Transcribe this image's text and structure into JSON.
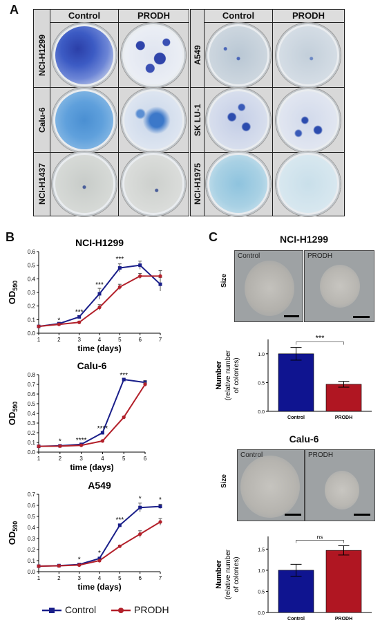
{
  "panel_a": {
    "letter": "A",
    "left_block": {
      "columns": [
        "Control",
        "PRODH"
      ],
      "rows": [
        "NCI-H1299",
        "Calu-6",
        "NCI-H1437"
      ]
    },
    "right_block": {
      "columns": [
        "Control",
        "PRODH"
      ],
      "rows": [
        "A549",
        "SK LU-1",
        "NCI-H1975"
      ]
    }
  },
  "panel_b": {
    "letter": "B",
    "legend": {
      "control": "Control",
      "prodh": "PRODH"
    },
    "colors": {
      "control": "#1a1f8a",
      "prodh": "#b3202a"
    }
  },
  "panel_c": {
    "letter": "C",
    "blocks": [
      {
        "title": "NCI-H1299",
        "size_label": "Size",
        "image_labels": [
          "Control",
          "PRODH"
        ],
        "y_label_1": "Number",
        "y_label_2": "(relative number",
        "y_label_3": "of colonies)"
      },
      {
        "title": "Calu-6",
        "size_label": "Size",
        "image_labels": [
          "Control",
          "PRODH"
        ],
        "y_label_1": "Number",
        "y_label_2": "(relative number",
        "y_label_3": "of colonies)"
      }
    ]
  },
  "chart_data": [
    {
      "type": "line",
      "title": "NCI-H1299",
      "xlabel": "time (days)",
      "ylabel": "OD590",
      "xlim": [
        1,
        7
      ],
      "ylim": [
        0,
        0.6
      ],
      "yticks": [
        "0.0",
        "0.1",
        "0.2",
        "0.3",
        "0.4",
        "0.5",
        "0.6"
      ],
      "x": [
        1,
        2,
        3,
        4,
        5,
        6,
        7
      ],
      "series": [
        {
          "name": "Control",
          "values": [
            0.05,
            0.07,
            0.12,
            0.29,
            0.48,
            0.5,
            0.36
          ],
          "err": [
            0.005,
            0.01,
            0.01,
            0.04,
            0.03,
            0.03,
            0.05
          ]
        },
        {
          "name": "PRODH",
          "values": [
            0.05,
            0.065,
            0.08,
            0.19,
            0.34,
            0.42,
            0.42
          ],
          "err": [
            0.005,
            0.005,
            0.008,
            0.02,
            0.02,
            0.02,
            0.04
          ]
        }
      ],
      "annotations": [
        {
          "x": 2,
          "y": 0.08,
          "text": "*"
        },
        {
          "x": 3,
          "y": 0.14,
          "text": "***"
        },
        {
          "x": 4,
          "y": 0.34,
          "text": "***"
        },
        {
          "x": 5,
          "y": 0.53,
          "text": "***"
        }
      ]
    },
    {
      "type": "line",
      "title": "Calu-6",
      "xlabel": "time (days)",
      "ylabel": "OD590",
      "xlim": [
        1,
        6
      ],
      "ylim": [
        0,
        0.8
      ],
      "yticks": [
        "0.0",
        "0.1",
        "0.2",
        "0.3",
        "0.4",
        "0.5",
        "0.6",
        "0.7",
        "0.8"
      ],
      "x": [
        1,
        2,
        3,
        4,
        5,
        6
      ],
      "series": [
        {
          "name": "Control",
          "values": [
            0.06,
            0.065,
            0.08,
            0.2,
            0.75,
            0.72
          ],
          "err": [
            0.005,
            0.005,
            0.01,
            0.01,
            0.01,
            0.02
          ]
        },
        {
          "name": "PRODH",
          "values": [
            0.06,
            0.062,
            0.07,
            0.115,
            0.36,
            0.7
          ],
          "err": [
            0.005,
            0.005,
            0.005,
            0.008,
            0.01,
            0.02
          ]
        }
      ],
      "annotations": [
        {
          "x": 2,
          "y": 0.09,
          "text": "*"
        },
        {
          "x": 3,
          "y": 0.1,
          "text": "****"
        },
        {
          "x": 4,
          "y": 0.22,
          "text": "****"
        },
        {
          "x": 5,
          "y": 0.77,
          "text": "***"
        }
      ]
    },
    {
      "type": "line",
      "title": "A549",
      "xlabel": "time (days)",
      "ylabel": "OD590",
      "xlim": [
        1,
        7
      ],
      "ylim": [
        0,
        0.7
      ],
      "yticks": [
        "0.0",
        "0.1",
        "0.2",
        "0.3",
        "0.4",
        "0.5",
        "0.6",
        "0.7"
      ],
      "x": [
        1,
        2,
        3,
        4,
        5,
        6,
        7
      ],
      "series": [
        {
          "name": "Control",
          "values": [
            0.05,
            0.055,
            0.065,
            0.12,
            0.42,
            0.58,
            0.59
          ],
          "err": [
            0.005,
            0.005,
            0.01,
            0.01,
            0.01,
            0.04,
            0.02
          ]
        },
        {
          "name": "PRODH",
          "values": [
            0.05,
            0.053,
            0.06,
            0.1,
            0.23,
            0.34,
            0.45
          ],
          "err": [
            0.005,
            0.005,
            0.005,
            0.01,
            0.01,
            0.03,
            0.03
          ]
        }
      ],
      "annotations": [
        {
          "x": 3,
          "y": 0.09,
          "text": "*"
        },
        {
          "x": 4,
          "y": 0.15,
          "text": "*"
        },
        {
          "x": 5,
          "y": 0.45,
          "text": "***"
        },
        {
          "x": 6,
          "y": 0.64,
          "text": "*"
        },
        {
          "x": 7,
          "y": 0.63,
          "text": "*"
        }
      ]
    },
    {
      "type": "bar",
      "title": "NCI-H1299",
      "categories": [
        "Control",
        "PRODH"
      ],
      "values": [
        1.0,
        0.47
      ],
      "err": [
        0.11,
        0.05
      ],
      "ylim": [
        0,
        1.25
      ],
      "yticks": [
        "0.0",
        "0.5",
        "1.0"
      ],
      "significance": "***"
    },
    {
      "type": "bar",
      "title": "Calu-6",
      "categories": [
        "Control",
        "PRODH"
      ],
      "values": [
        1.0,
        1.47
      ],
      "err": [
        0.14,
        0.11
      ],
      "ylim": [
        0,
        1.8
      ],
      "yticks": [
        "0.0",
        "0.5",
        "1.0",
        "1.5"
      ],
      "significance": "ns"
    }
  ]
}
